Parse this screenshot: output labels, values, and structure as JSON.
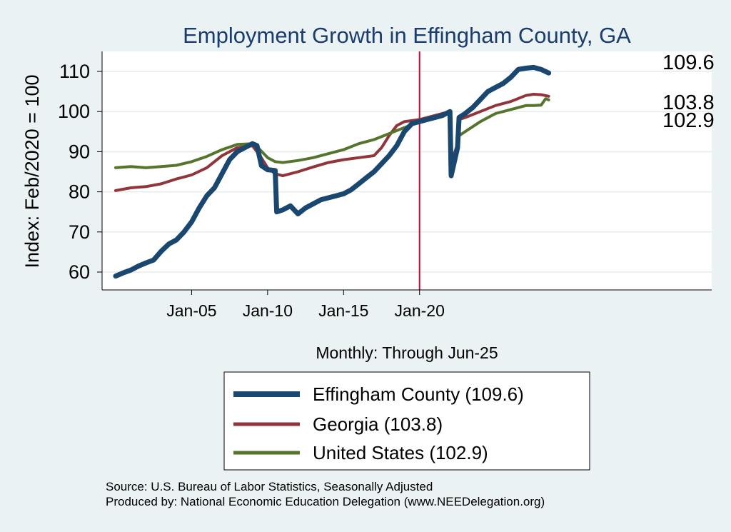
{
  "chart_data": {
    "type": "line",
    "title": "Employment Growth in Effingham  County, GA",
    "ylabel": "Index: Feb/2020 = 100",
    "xlabel": "Monthly: Through Jun-25",
    "ylim": [
      56,
      112
    ],
    "yticks": [
      60,
      70,
      80,
      90,
      100,
      110
    ],
    "xlim": [
      2000.0,
      2028.0
    ],
    "xticks": [
      {
        "x": 2005.0,
        "label": "Jan-05"
      },
      {
        "x": 2010.0,
        "label": "Jan-10"
      },
      {
        "x": 2015.0,
        "label": "Jan-15"
      },
      {
        "x": 2020.0,
        "label": "Jan-20"
      }
    ],
    "reference_line": {
      "x": 2020.0,
      "color": "#b5123a"
    },
    "grid": "horizontal",
    "series": [
      {
        "name": "Effingham  County",
        "legend": "Effingham  County (109.6)",
        "end_label": "109.6",
        "color": "#1a476f",
        "width": 7,
        "points": [
          [
            2000.0,
            59.0
          ],
          [
            2000.5,
            59.8
          ],
          [
            2001.0,
            60.5
          ],
          [
            2001.5,
            61.5
          ],
          [
            2002.0,
            62.3
          ],
          [
            2002.5,
            63.0
          ],
          [
            2003.0,
            65.2
          ],
          [
            2003.5,
            67.0
          ],
          [
            2004.0,
            68.0
          ],
          [
            2004.5,
            70.0
          ],
          [
            2005.0,
            72.5
          ],
          [
            2005.5,
            76.0
          ],
          [
            2006.0,
            79.0
          ],
          [
            2006.5,
            81.0
          ],
          [
            2007.0,
            84.5
          ],
          [
            2007.5,
            88.0
          ],
          [
            2008.0,
            90.0
          ],
          [
            2008.5,
            91.0
          ],
          [
            2009.0,
            92.0
          ],
          [
            2009.3,
            91.5
          ],
          [
            2009.6,
            86.5
          ],
          [
            2010.0,
            85.5
          ],
          [
            2010.5,
            85.3
          ],
          [
            2010.6,
            75.0
          ],
          [
            2011.0,
            75.5
          ],
          [
            2011.5,
            76.5
          ],
          [
            2012.0,
            74.5
          ],
          [
            2012.5,
            76.0
          ],
          [
            2013.0,
            77.0
          ],
          [
            2013.5,
            78.0
          ],
          [
            2014.0,
            78.5
          ],
          [
            2014.5,
            79.0
          ],
          [
            2015.0,
            79.5
          ],
          [
            2015.5,
            80.5
          ],
          [
            2016.0,
            82.0
          ],
          [
            2016.5,
            83.5
          ],
          [
            2017.0,
            85.0
          ],
          [
            2017.5,
            87.0
          ],
          [
            2018.0,
            89.0
          ],
          [
            2018.5,
            91.5
          ],
          [
            2019.0,
            95.0
          ],
          [
            2019.5,
            97.0
          ],
          [
            2020.0,
            97.5
          ],
          [
            2020.5,
            98.0
          ],
          [
            2021.0,
            98.5
          ],
          [
            2021.5,
            99.0
          ],
          [
            2022.0,
            100.0
          ],
          [
            2022.08,
            84.0
          ],
          [
            2022.5,
            91.0
          ],
          [
            2022.6,
            98.5
          ],
          [
            2023.0,
            99.5
          ],
          [
            2023.5,
            101.0
          ],
          [
            2024.0,
            103.0
          ],
          [
            2024.5,
            105.0
          ],
          [
            2025.0,
            106.0
          ],
          [
            2025.5,
            107.0
          ],
          [
            2026.0,
            108.5
          ],
          [
            2026.5,
            110.5
          ],
          [
            2027.0,
            110.8
          ],
          [
            2027.5,
            111.0
          ],
          [
            2028.0,
            110.5
          ],
          [
            2028.5,
            109.6
          ]
        ]
      },
      {
        "name": "Georgia",
        "legend": "Georgia (103.8)",
        "end_label": "103.8",
        "color": "#90353b",
        "width": 4,
        "points": [
          [
            2000.0,
            80.3
          ],
          [
            2001.0,
            81.0
          ],
          [
            2002.0,
            81.3
          ],
          [
            2003.0,
            82.0
          ],
          [
            2004.0,
            83.2
          ],
          [
            2005.0,
            84.2
          ],
          [
            2006.0,
            86.0
          ],
          [
            2007.0,
            89.0
          ],
          [
            2008.0,
            91.0
          ],
          [
            2009.0,
            91.5
          ],
          [
            2009.5,
            89.0
          ],
          [
            2010.0,
            86.0
          ],
          [
            2010.5,
            84.5
          ],
          [
            2011.0,
            84.0
          ],
          [
            2012.0,
            85.0
          ],
          [
            2013.0,
            86.2
          ],
          [
            2014.0,
            87.3
          ],
          [
            2015.0,
            88.0
          ],
          [
            2016.0,
            88.5
          ],
          [
            2017.0,
            89.0
          ],
          [
            2017.5,
            91.0
          ],
          [
            2018.0,
            94.0
          ],
          [
            2018.5,
            96.5
          ],
          [
            2019.0,
            97.5
          ],
          [
            2020.0,
            98.0
          ],
          [
            2021.0,
            99.0
          ],
          [
            2022.0,
            100.0
          ],
          [
            2022.08,
            87.0
          ],
          [
            2022.5,
            92.0
          ],
          [
            2022.6,
            98.0
          ],
          [
            2023.0,
            98.5
          ],
          [
            2024.0,
            100.0
          ],
          [
            2025.0,
            101.5
          ],
          [
            2026.0,
            102.5
          ],
          [
            2027.0,
            104.0
          ],
          [
            2027.5,
            104.3
          ],
          [
            2028.0,
            104.2
          ],
          [
            2028.5,
            103.8
          ]
        ]
      },
      {
        "name": "United States",
        "legend": "United States (102.9)",
        "end_label": "102.9",
        "color": "#55752f",
        "width": 4,
        "points": [
          [
            2000.0,
            86.0
          ],
          [
            2001.0,
            86.3
          ],
          [
            2002.0,
            86.0
          ],
          [
            2003.0,
            86.3
          ],
          [
            2004.0,
            86.6
          ],
          [
            2005.0,
            87.5
          ],
          [
            2006.0,
            88.8
          ],
          [
            2007.0,
            90.5
          ],
          [
            2008.0,
            91.8
          ],
          [
            2009.0,
            92.0
          ],
          [
            2009.5,
            90.5
          ],
          [
            2010.0,
            88.5
          ],
          [
            2010.5,
            87.5
          ],
          [
            2011.0,
            87.3
          ],
          [
            2012.0,
            87.8
          ],
          [
            2013.0,
            88.5
          ],
          [
            2014.0,
            89.5
          ],
          [
            2015.0,
            90.5
          ],
          [
            2016.0,
            92.0
          ],
          [
            2017.0,
            93.0
          ],
          [
            2018.0,
            94.5
          ],
          [
            2019.0,
            96.0
          ],
          [
            2020.0,
            97.5
          ],
          [
            2021.0,
            98.5
          ],
          [
            2022.0,
            100.0
          ],
          [
            2022.08,
            85.0
          ],
          [
            2022.5,
            90.0
          ],
          [
            2022.6,
            94.0
          ],
          [
            2023.0,
            95.0
          ],
          [
            2024.0,
            97.5
          ],
          [
            2025.0,
            99.5
          ],
          [
            2026.0,
            100.5
          ],
          [
            2027.0,
            101.5
          ],
          [
            2027.5,
            101.5
          ],
          [
            2028.0,
            101.6
          ],
          [
            2028.3,
            103.2
          ],
          [
            2028.5,
            102.9
          ]
        ]
      }
    ]
  },
  "footer": {
    "source": "Source: U.S. Bureau of Labor Statistics, Seasonally Adjusted",
    "produced_by": "Produced by: National Economic Education Delegation (www.NEEDelegation.org)"
  }
}
